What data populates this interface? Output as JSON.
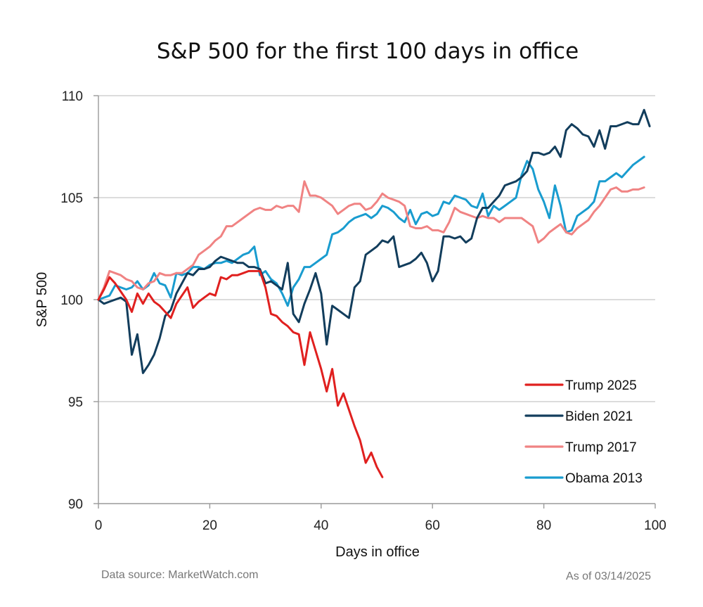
{
  "chart_data": {
    "type": "line",
    "title": "S&P 500 for the first 100 days in office",
    "xlabel": "Days in office",
    "ylabel": "S&P 500",
    "xlim": [
      0,
      100
    ],
    "ylim": [
      90,
      110
    ],
    "xticks": [
      0,
      20,
      40,
      60,
      80,
      100
    ],
    "yticks": [
      90,
      95,
      100,
      105,
      110
    ],
    "grid": "horizontal",
    "legend_position": "bottom-right",
    "series": [
      {
        "name": "Trump 2025",
        "color": "#e0201f",
        "x": [
          0,
          1,
          2,
          3,
          4,
          5,
          6,
          7,
          8,
          9,
          10,
          11,
          12,
          13,
          14,
          15,
          16,
          17,
          18,
          19,
          20,
          21,
          22,
          23,
          24,
          25,
          26,
          27,
          28,
          29,
          30,
          31,
          32,
          33,
          34,
          35,
          36,
          37,
          38,
          39,
          40,
          41,
          42,
          43,
          44,
          45,
          46,
          47,
          48,
          49,
          50,
          51
        ],
        "values": [
          100.0,
          100.5,
          101.1,
          100.8,
          100.4,
          100.0,
          99.4,
          100.3,
          99.8,
          100.3,
          99.9,
          99.7,
          99.4,
          99.1,
          99.8,
          100.2,
          100.6,
          99.6,
          99.9,
          100.1,
          100.3,
          100.2,
          101.1,
          101.0,
          101.2,
          101.2,
          101.3,
          101.4,
          101.4,
          101.4,
          100.6,
          99.3,
          99.2,
          98.9,
          98.7,
          98.4,
          98.3,
          96.8,
          98.4,
          97.5,
          96.6,
          95.5,
          96.6,
          94.8,
          95.4,
          94.6,
          93.8,
          93.1,
          92.0,
          92.5,
          91.8,
          91.3
        ]
      },
      {
        "name": "Biden 2021",
        "color": "#123d5c",
        "x": [
          0,
          1,
          2,
          3,
          4,
          5,
          6,
          7,
          8,
          9,
          10,
          11,
          12,
          13,
          14,
          15,
          16,
          17,
          18,
          19,
          20,
          21,
          22,
          23,
          24,
          25,
          26,
          27,
          28,
          29,
          30,
          31,
          32,
          33,
          34,
          35,
          36,
          37,
          38,
          39,
          40,
          41,
          42,
          43,
          44,
          45,
          46,
          47,
          48,
          49,
          50,
          51,
          52,
          53,
          54,
          55,
          56,
          57,
          58,
          59,
          60,
          61,
          62,
          63,
          64,
          65,
          66,
          67,
          68,
          69,
          70,
          71,
          72,
          73,
          74,
          75,
          76,
          77,
          78,
          79,
          80,
          81,
          82,
          83,
          84,
          85,
          86,
          87,
          88,
          89,
          90,
          91,
          92,
          93,
          94,
          95,
          96,
          97,
          98,
          99
        ],
        "values": [
          100.0,
          99.8,
          99.9,
          100.0,
          100.1,
          99.9,
          97.3,
          98.3,
          96.4,
          96.8,
          97.3,
          98.1,
          99.2,
          99.5,
          100.3,
          100.8,
          101.3,
          101.2,
          101.5,
          101.5,
          101.6,
          101.9,
          102.1,
          102.0,
          101.9,
          101.8,
          101.8,
          101.6,
          101.6,
          101.5,
          100.8,
          100.9,
          100.7,
          100.5,
          101.8,
          99.3,
          98.9,
          99.8,
          100.5,
          101.3,
          100.3,
          97.8,
          99.7,
          99.5,
          99.3,
          99.1,
          100.6,
          100.9,
          102.2,
          102.4,
          102.6,
          102.9,
          102.8,
          103.1,
          101.6,
          101.7,
          101.8,
          102.0,
          102.3,
          101.8,
          100.9,
          101.4,
          103.1,
          103.1,
          103.0,
          103.1,
          102.8,
          103.0,
          104.0,
          104.5,
          104.5,
          104.8,
          105.1,
          105.6,
          105.7,
          105.8,
          106.0,
          106.3,
          107.2,
          107.2,
          107.1,
          107.2,
          107.5,
          107.0,
          108.3,
          108.6,
          108.4,
          108.1,
          108.0,
          107.5,
          108.3,
          107.4,
          108.5,
          108.5,
          108.6,
          108.7,
          108.6,
          108.6,
          109.3,
          108.5
        ]
      },
      {
        "name": "Trump 2017",
        "color": "#f08383",
        "x": [
          0,
          1,
          2,
          3,
          4,
          5,
          6,
          7,
          8,
          9,
          10,
          11,
          12,
          13,
          14,
          15,
          16,
          17,
          18,
          19,
          20,
          21,
          22,
          23,
          24,
          25,
          26,
          27,
          28,
          29,
          30,
          31,
          32,
          33,
          34,
          35,
          36,
          37,
          38,
          39,
          40,
          41,
          42,
          43,
          44,
          45,
          46,
          47,
          48,
          49,
          50,
          51,
          52,
          53,
          54,
          55,
          56,
          57,
          58,
          59,
          60,
          61,
          62,
          63,
          64,
          65,
          66,
          67,
          68,
          69,
          70,
          71,
          72,
          73,
          74,
          75,
          76,
          77,
          78,
          79,
          80,
          81,
          82,
          83,
          84,
          85,
          86,
          87,
          88,
          89,
          90,
          91,
          92,
          93,
          94,
          95,
          96,
          97,
          98
        ],
        "values": [
          100.0,
          100.6,
          101.4,
          101.3,
          101.2,
          101.0,
          100.9,
          100.6,
          100.5,
          100.8,
          100.9,
          101.3,
          101.2,
          101.2,
          101.3,
          101.3,
          101.5,
          101.7,
          102.2,
          102.4,
          102.6,
          102.9,
          103.1,
          103.6,
          103.6,
          103.8,
          104.0,
          104.2,
          104.4,
          104.5,
          104.4,
          104.4,
          104.6,
          104.5,
          104.6,
          104.6,
          104.3,
          105.8,
          105.1,
          105.1,
          105.0,
          104.8,
          104.6,
          104.2,
          104.4,
          104.6,
          104.7,
          104.7,
          104.4,
          104.5,
          104.8,
          105.2,
          105.0,
          104.9,
          104.8,
          104.6,
          103.6,
          103.5,
          103.5,
          103.6,
          103.4,
          103.4,
          103.3,
          103.8,
          104.5,
          104.3,
          104.2,
          104.1,
          104.0,
          104.1,
          104.0,
          104.0,
          103.8,
          104.0,
          104.0,
          104.0,
          104.0,
          103.8,
          103.6,
          102.8,
          103.0,
          103.3,
          103.5,
          103.7,
          103.3,
          103.2,
          103.5,
          103.7,
          103.9,
          104.3,
          104.6,
          105.0,
          105.4,
          105.5,
          105.3,
          105.3,
          105.4,
          105.4,
          105.5
        ]
      },
      {
        "name": "Obama 2013",
        "color": "#199ccf",
        "x": [
          0,
          1,
          2,
          3,
          4,
          5,
          6,
          7,
          8,
          9,
          10,
          11,
          12,
          13,
          14,
          15,
          16,
          17,
          18,
          19,
          20,
          21,
          22,
          23,
          24,
          25,
          26,
          27,
          28,
          29,
          30,
          31,
          32,
          33,
          34,
          35,
          36,
          37,
          38,
          39,
          40,
          41,
          42,
          43,
          44,
          45,
          46,
          47,
          48,
          49,
          50,
          51,
          52,
          53,
          54,
          55,
          56,
          57,
          58,
          59,
          60,
          61,
          62,
          63,
          64,
          65,
          66,
          67,
          68,
          69,
          70,
          71,
          72,
          73,
          74,
          75,
          76,
          77,
          78,
          79,
          80,
          81,
          82,
          83,
          84,
          85,
          86,
          87,
          88,
          89,
          90,
          91,
          92,
          93,
          94,
          95,
          96,
          97,
          98
        ],
        "values": [
          100.0,
          100.1,
          100.2,
          100.7,
          100.6,
          100.5,
          100.6,
          100.9,
          100.5,
          100.7,
          101.3,
          100.8,
          100.7,
          100.1,
          101.3,
          101.2,
          101.3,
          101.6,
          101.6,
          101.5,
          101.7,
          101.8,
          101.8,
          101.9,
          101.8,
          102.0,
          102.2,
          102.3,
          102.6,
          101.2,
          101.4,
          101.0,
          100.8,
          100.3,
          99.7,
          100.6,
          101.0,
          101.6,
          101.6,
          101.8,
          102.0,
          102.2,
          103.2,
          103.3,
          103.5,
          103.8,
          104.0,
          104.1,
          104.2,
          104.0,
          104.2,
          104.6,
          104.5,
          104.3,
          104.0,
          103.8,
          104.4,
          103.7,
          104.2,
          104.3,
          104.1,
          104.2,
          104.8,
          104.7,
          105.1,
          105.0,
          104.9,
          104.6,
          104.5,
          105.2,
          104.1,
          104.6,
          104.4,
          104.6,
          104.8,
          105.0,
          106.1,
          106.8,
          106.4,
          105.4,
          104.8,
          104.0,
          105.6,
          104.6,
          103.3,
          103.4,
          104.1,
          104.3,
          104.5,
          104.8,
          105.8,
          105.8,
          106.0,
          106.2,
          106.0,
          106.3,
          106.6,
          106.8,
          107.0
        ]
      }
    ],
    "footer_source": "Data source: MarketWatch.com",
    "footer_date": "As of 03/14/2025"
  }
}
